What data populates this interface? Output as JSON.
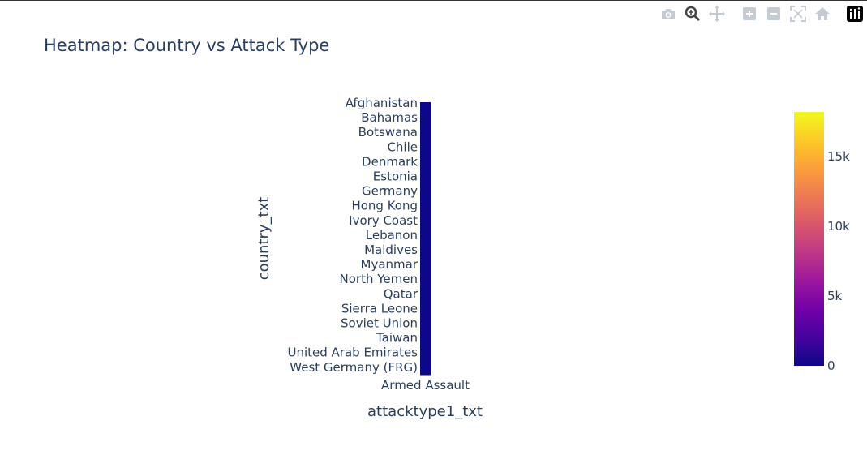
{
  "modebar": {
    "buttons": [
      {
        "name": "camera-icon",
        "title": "Download plot as a png"
      },
      {
        "name": "zoom-icon",
        "title": "Zoom"
      },
      {
        "name": "pan-icon",
        "title": "Pan"
      },
      {
        "name": "zoom-in-icon",
        "title": "Zoom in"
      },
      {
        "name": "zoom-out-icon",
        "title": "Zoom out"
      },
      {
        "name": "autoscale-icon",
        "title": "Autoscale"
      },
      {
        "name": "reset-axes-icon",
        "title": "Reset axes"
      },
      {
        "name": "plotly-logo-icon",
        "title": "Produced with Plotly"
      }
    ]
  },
  "chart_data": {
    "type": "heatmap",
    "title": "Heatmap: Country vs Attack Type",
    "xlabel": "attacktype1_txt",
    "ylabel": "country_txt",
    "x_categories": [
      "Armed Assault"
    ],
    "y_tick_labels": [
      "Afghanistan",
      "Bahamas",
      "Botswana",
      "Chile",
      "Denmark",
      "Estonia",
      "Germany",
      "Hong Kong",
      "Ivory Coast",
      "Lebanon",
      "Maldives",
      "Myanmar",
      "North Yemen",
      "Qatar",
      "Sierra Leone",
      "Soviet Union",
      "Taiwan",
      "United Arab Emirates",
      "West Germany (FRG)"
    ],
    "values": [
      0,
      0,
      0,
      0,
      0,
      0,
      0,
      0,
      0,
      0,
      0,
      0,
      0,
      0,
      0,
      0,
      0,
      0,
      0
    ],
    "colorscale": [
      "#0d0887",
      "#46039f",
      "#7201a8",
      "#9c179e",
      "#bd3786",
      "#d8576b",
      "#ed7953",
      "#fb9f3a",
      "#fdca26",
      "#f0f921"
    ],
    "zrange": [
      0,
      18200
    ],
    "colorbar_ticks": [
      {
        "value": 0,
        "label": "0"
      },
      {
        "value": 5000,
        "label": "5k"
      },
      {
        "value": 10000,
        "label": "10k"
      },
      {
        "value": 15000,
        "label": "15k"
      }
    ]
  }
}
